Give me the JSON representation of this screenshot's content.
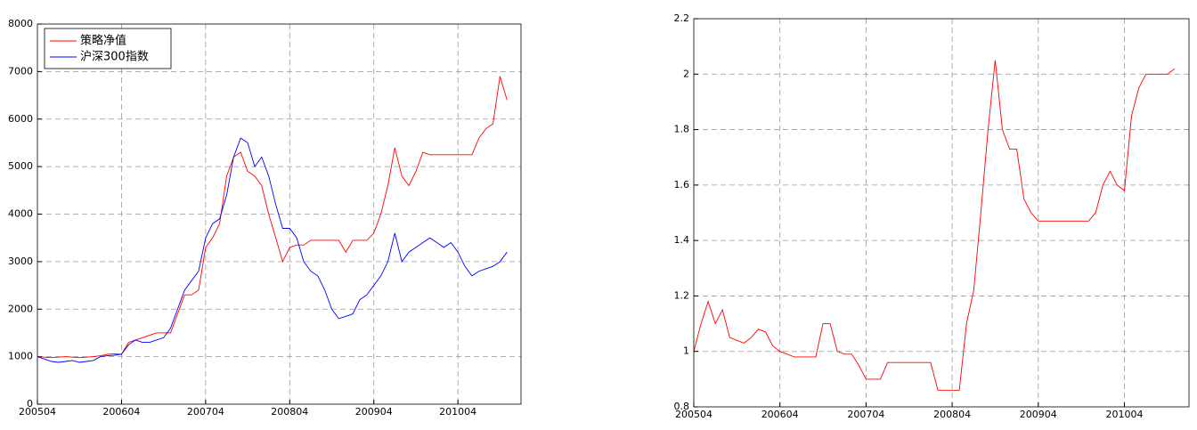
{
  "chart_data": [
    {
      "type": "line",
      "x": [
        "200504",
        "200505",
        "200506",
        "200507",
        "200508",
        "200509",
        "200510",
        "200511",
        "200512",
        "200601",
        "200602",
        "200603",
        "200604",
        "200605",
        "200606",
        "200607",
        "200608",
        "200609",
        "200610",
        "200611",
        "200612",
        "200701",
        "200702",
        "200703",
        "200704",
        "200705",
        "200706",
        "200707",
        "200708",
        "200709",
        "200710",
        "200711",
        "200712",
        "200801",
        "200802",
        "200803",
        "200804",
        "200805",
        "200806",
        "200807",
        "200808",
        "200809",
        "200810",
        "200811",
        "200812",
        "200901",
        "200902",
        "200903",
        "200904",
        "200905",
        "200906",
        "200907",
        "200908",
        "200909",
        "200910",
        "200911",
        "200912",
        "201001",
        "201002",
        "201003",
        "201004",
        "201005",
        "201006",
        "201007",
        "201008",
        "201009",
        "201010",
        "201011"
      ],
      "xlim": [
        "200504",
        "201101"
      ],
      "xticks": [
        "200504",
        "200604",
        "200704",
        "200804",
        "200904",
        "201004"
      ],
      "ylim": [
        0,
        8000
      ],
      "yticks": [
        0,
        1000,
        2000,
        3000,
        4000,
        5000,
        6000,
        7000,
        8000
      ],
      "grid": true,
      "legend": "upper-left",
      "series": [
        {
          "name": "策略净值",
          "color": "#ff0000",
          "values": [
            1000,
            990,
            980,
            990,
            1000,
            990,
            980,
            990,
            1000,
            1020,
            1050,
            1060,
            1050,
            1300,
            1350,
            1400,
            1450,
            1500,
            1500,
            1500,
            1900,
            2300,
            2300,
            2400,
            3300,
            3500,
            3800,
            4800,
            5200,
            5300,
            4900,
            4800,
            4600,
            4000,
            3500,
            3000,
            3300,
            3350,
            3350,
            3450,
            3450,
            3450,
            3450,
            3450,
            3200,
            3450,
            3450,
            3450,
            3600,
            4000,
            4600,
            5400,
            4800,
            4600,
            4900,
            5300,
            5250,
            5250,
            5250,
            5250,
            5250,
            5250,
            5250,
            5600,
            5800,
            5900,
            6900,
            6400
          ]
        },
        {
          "name": "沪深300指数",
          "color": "#0000ff",
          "values": [
            1000,
            950,
            900,
            880,
            900,
            920,
            880,
            900,
            920,
            1000,
            1020,
            1030,
            1050,
            1250,
            1350,
            1300,
            1300,
            1350,
            1400,
            1600,
            2000,
            2400,
            2600,
            2800,
            3500,
            3800,
            3900,
            4400,
            5200,
            5600,
            5500,
            5000,
            5200,
            4800,
            4200,
            3700,
            3700,
            3500,
            3000,
            2800,
            2700,
            2400,
            2000,
            1800,
            1850,
            1900,
            2200,
            2300,
            2500,
            2700,
            3000,
            3600,
            3000,
            3200,
            3300,
            3400,
            3500,
            3400,
            3300,
            3400,
            3200,
            2900,
            2700,
            2800,
            2850,
            2900,
            3000,
            3200
          ]
        }
      ]
    },
    {
      "type": "line",
      "x": [
        "200504",
        "200505",
        "200506",
        "200507",
        "200508",
        "200509",
        "200510",
        "200511",
        "200512",
        "200601",
        "200602",
        "200603",
        "200604",
        "200605",
        "200606",
        "200607",
        "200608",
        "200609",
        "200610",
        "200611",
        "200612",
        "200701",
        "200702",
        "200703",
        "200704",
        "200705",
        "200706",
        "200707",
        "200708",
        "200709",
        "200710",
        "200711",
        "200712",
        "200801",
        "200802",
        "200803",
        "200804",
        "200805",
        "200806",
        "200807",
        "200808",
        "200809",
        "200810",
        "200811",
        "200812",
        "200901",
        "200902",
        "200903",
        "200904",
        "200905",
        "200906",
        "200907",
        "200908",
        "200909",
        "200910",
        "200911",
        "200912",
        "201001",
        "201002",
        "201003",
        "201004",
        "201005",
        "201006",
        "201007",
        "201008",
        "201009",
        "201010",
        "201011"
      ],
      "xlim": [
        "200504",
        "201101"
      ],
      "xticks": [
        "200504",
        "200604",
        "200704",
        "200804",
        "200904",
        "201004"
      ],
      "ylim": [
        0.8,
        2.2
      ],
      "yticks": [
        0.8,
        1,
        1.2,
        1.4,
        1.6,
        1.8,
        2,
        2.2
      ],
      "grid": true,
      "series": [
        {
          "color": "#ff0000",
          "values": [
            1.0,
            1.1,
            1.18,
            1.1,
            1.15,
            1.05,
            1.04,
            1.03,
            1.05,
            1.08,
            1.07,
            1.02,
            1.0,
            0.99,
            0.98,
            0.98,
            0.98,
            0.98,
            1.1,
            1.1,
            1.0,
            0.99,
            0.99,
            0.95,
            0.9,
            0.9,
            0.9,
            0.96,
            0.96,
            0.96,
            0.96,
            0.96,
            0.96,
            0.96,
            0.86,
            0.86,
            0.86,
            0.86,
            1.1,
            1.22,
            1.5,
            1.8,
            2.05,
            1.8,
            1.73,
            1.73,
            1.55,
            1.5,
            1.47,
            1.47,
            1.47,
            1.47,
            1.47,
            1.47,
            1.47,
            1.47,
            1.5,
            1.6,
            1.65,
            1.6,
            1.58,
            1.85,
            1.95,
            2.0,
            2.0,
            2.0,
            2.0,
            2.02
          ]
        }
      ]
    }
  ]
}
